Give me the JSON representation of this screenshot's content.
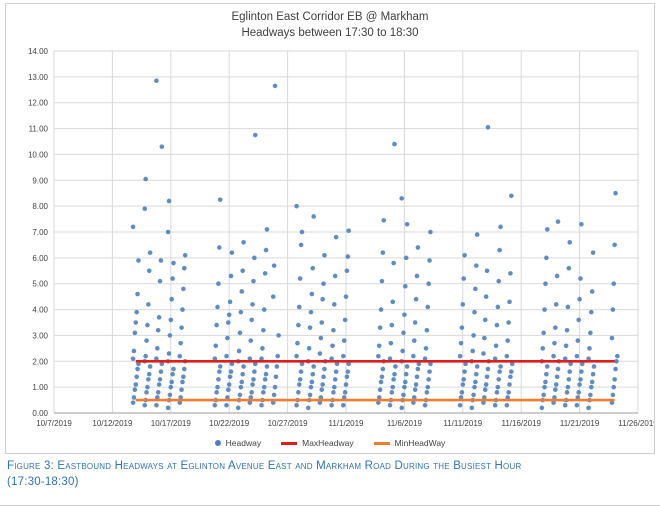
{
  "title": {
    "line1": "Eglinton East Corridor EB @ Markham",
    "line2": "Headways between 17:30 to 18:30"
  },
  "caption": {
    "line1": "Figure 3: Eastbound Headways at Eglinton Avenue East and Markham Road During the Busiest Hour",
    "line2": "(17:30-18:30)"
  },
  "colors": {
    "point": "#4e81bd",
    "max_line": "#e21c1c",
    "min_line": "#ed7d31",
    "grid": "#d9d9d9",
    "axis_line": "#9b9b9b",
    "axis_text": "#444444",
    "caption": "#2e74b5",
    "title_text": "#3f3f3f",
    "border": "#cfcfcf"
  },
  "chart_data": {
    "type": "scatter",
    "title": "Eglinton East Corridor EB @ Markham",
    "subtitle": "Headways between 17:30 to 18:30",
    "xlabel": "",
    "ylabel": "",
    "legend": [
      "Headway",
      "MaxHeadway",
      "MinHeadWay"
    ],
    "legend_position": "bottom",
    "grid": true,
    "y_axis": {
      "min": 0,
      "max": 14,
      "step": 1,
      "tick_format": "0.00"
    },
    "x_axis": {
      "start": "10/7/2019",
      "end": "11/26/2019",
      "tick_labels": [
        "10/7/2019",
        "10/12/2019",
        "10/17/2019",
        "10/22/2019",
        "10/27/2019",
        "11/1/2019",
        "11/6/2019",
        "11/11/2019",
        "11/16/2019",
        "11/21/2019",
        "11/26/2019"
      ]
    },
    "max_headway": 2.0,
    "min_headway": 0.5,
    "series_name": "Headway",
    "points_by_date": [
      {
        "date": "10/14/2019",
        "values": [
          0.4,
          0.6,
          0.9,
          1.1,
          1.4,
          1.7,
          1.9,
          2.1,
          2.4,
          3.1,
          3.5,
          3.9,
          4.6,
          5.9,
          7.2
        ]
      },
      {
        "date": "10/15/2019",
        "values": [
          0.3,
          0.5,
          0.8,
          1.0,
          1.3,
          1.5,
          1.8,
          2.0,
          2.2,
          2.8,
          3.4,
          4.2,
          5.5,
          6.2,
          7.9,
          9.05
        ]
      },
      {
        "date": "10/16/2019",
        "values": [
          0.3,
          0.6,
          0.8,
          1.1,
          1.3,
          1.6,
          1.9,
          2.1,
          2.5,
          3.2,
          3.7,
          5.1,
          5.9,
          10.3,
          12.85
        ]
      },
      {
        "date": "10/17/2019",
        "values": [
          0.2,
          0.5,
          0.7,
          1.0,
          1.2,
          1.5,
          1.7,
          2.0,
          2.3,
          3.0,
          3.6,
          4.4,
          5.2,
          5.8,
          7.0,
          8.2
        ]
      },
      {
        "date": "10/18/2019",
        "values": [
          0.4,
          0.6,
          0.9,
          1.2,
          1.4,
          1.7,
          2.0,
          2.2,
          2.7,
          3.3,
          4.0,
          4.8,
          5.6,
          6.1
        ]
      },
      {
        "date": "10/21/2019",
        "values": [
          0.3,
          0.5,
          0.8,
          1.0,
          1.3,
          1.6,
          1.8,
          2.1,
          2.6,
          3.4,
          4.1,
          5.0,
          6.4,
          8.25
        ]
      },
      {
        "date": "10/22/2019",
        "values": [
          0.3,
          0.6,
          0.9,
          1.1,
          1.4,
          1.6,
          1.9,
          2.2,
          2.9,
          3.5,
          3.8,
          4.3,
          5.3,
          6.2
        ]
      },
      {
        "date": "10/23/2019",
        "values": [
          0.2,
          0.5,
          0.7,
          1.0,
          1.2,
          1.5,
          1.8,
          2.0,
          2.4,
          3.1,
          3.9,
          4.7,
          5.5,
          6.6
        ]
      },
      {
        "date": "10/24/2019",
        "values": [
          0.4,
          0.6,
          0.8,
          1.1,
          1.3,
          1.6,
          1.9,
          2.1,
          2.8,
          3.6,
          4.2,
          5.1,
          6.0,
          10.75
        ]
      },
      {
        "date": "10/25/2019",
        "values": [
          0.3,
          0.5,
          0.8,
          1.0,
          1.3,
          1.5,
          1.8,
          2.1,
          2.5,
          3.2,
          4.0,
          5.4,
          6.3,
          7.1
        ]
      },
      {
        "date": "10/26/2019",
        "values": [
          0.4,
          0.7,
          1.0,
          1.4,
          1.8,
          2.2,
          3.0,
          4.5,
          5.7,
          12.65
        ]
      },
      {
        "date": "10/28/2019",
        "values": [
          0.3,
          0.5,
          0.8,
          1.1,
          1.3,
          1.6,
          1.9,
          2.2,
          2.7,
          3.4,
          4.1,
          5.2,
          6.5,
          7.0,
          8.0
        ]
      },
      {
        "date": "10/29/2019",
        "values": [
          0.2,
          0.5,
          0.7,
          1.0,
          1.2,
          1.5,
          1.8,
          2.0,
          2.5,
          3.3,
          3.9,
          4.6,
          5.6,
          7.6
        ]
      },
      {
        "date": "10/30/2019",
        "values": [
          0.4,
          0.6,
          0.9,
          1.1,
          1.4,
          1.7,
          2.0,
          2.3,
          2.9,
          3.5,
          4.4,
          5.0,
          6.1
        ]
      },
      {
        "date": "10/31/2019",
        "values": [
          0.3,
          0.5,
          0.8,
          1.0,
          1.3,
          1.6,
          1.9,
          2.1,
          2.6,
          3.2,
          4.2,
          5.3,
          6.8
        ]
      },
      {
        "date": "11/1/2019",
        "values": [
          0.3,
          0.6,
          0.8,
          1.1,
          1.4,
          1.6,
          1.9,
          2.2,
          2.8,
          3.6,
          4.5,
          5.5,
          6.05,
          7.05
        ]
      },
      {
        "date": "11/4/2019",
        "values": [
          0.4,
          0.6,
          0.9,
          1.2,
          1.4,
          1.7,
          2.0,
          2.2,
          2.6,
          3.3,
          4.0,
          5.1,
          6.2,
          7.45
        ]
      },
      {
        "date": "11/5/2019",
        "values": [
          0.3,
          0.5,
          0.8,
          1.0,
          1.3,
          1.5,
          1.8,
          2.1,
          2.7,
          3.4,
          4.3,
          5.8,
          10.4
        ]
      },
      {
        "date": "11/6/2019",
        "values": [
          0.2,
          0.5,
          0.7,
          1.0,
          1.2,
          1.5,
          1.8,
          2.0,
          2.4,
          3.1,
          3.8,
          4.9,
          6.0,
          7.3,
          8.3
        ]
      },
      {
        "date": "11/7/2019",
        "values": [
          0.4,
          0.6,
          0.9,
          1.1,
          1.4,
          1.7,
          1.9,
          2.2,
          2.8,
          3.5,
          4.4,
          5.3,
          6.4
        ]
      },
      {
        "date": "11/8/2019",
        "values": [
          0.3,
          0.5,
          0.8,
          1.0,
          1.3,
          1.6,
          1.9,
          2.1,
          2.5,
          3.2,
          4.1,
          5.0,
          5.9,
          7.0
        ]
      },
      {
        "date": "11/11/2019",
        "values": [
          0.3,
          0.6,
          0.8,
          1.1,
          1.3,
          1.6,
          1.9,
          2.2,
          2.7,
          3.3,
          4.2,
          5.2,
          6.1
        ]
      },
      {
        "date": "11/12/2019",
        "values": [
          0.2,
          0.5,
          0.7,
          1.0,
          1.2,
          1.5,
          1.8,
          2.0,
          2.4,
          3.0,
          3.9,
          4.8,
          5.7,
          6.9
        ]
      },
      {
        "date": "11/13/2019",
        "values": [
          0.4,
          0.6,
          0.9,
          1.1,
          1.4,
          1.7,
          2.0,
          2.3,
          2.9,
          3.6,
          4.5,
          5.5,
          11.05
        ]
      },
      {
        "date": "11/14/2019",
        "values": [
          0.3,
          0.5,
          0.8,
          1.0,
          1.3,
          1.6,
          1.8,
          2.1,
          2.6,
          3.4,
          4.1,
          5.1,
          6.3,
          7.2
        ]
      },
      {
        "date": "11/15/2019",
        "values": [
          0.3,
          0.6,
          0.8,
          1.1,
          1.4,
          1.6,
          1.9,
          2.2,
          2.8,
          3.5,
          4.3,
          5.4,
          8.4
        ]
      },
      {
        "date": "11/18/2019",
        "values": [
          0.2,
          0.5,
          0.7,
          1.0,
          1.2,
          1.5,
          1.8,
          2.0,
          2.5,
          3.1,
          4.0,
          5.0,
          6.0,
          7.1
        ]
      },
      {
        "date": "11/19/2019",
        "values": [
          0.4,
          0.6,
          0.9,
          1.1,
          1.4,
          1.7,
          2.0,
          2.2,
          2.7,
          3.3,
          4.2,
          5.3,
          7.4
        ]
      },
      {
        "date": "11/20/2019",
        "values": [
          0.3,
          0.5,
          0.8,
          1.0,
          1.3,
          1.6,
          1.9,
          2.1,
          2.6,
          3.2,
          4.1,
          5.6,
          6.6
        ]
      },
      {
        "date": "11/21/2019",
        "values": [
          0.3,
          0.6,
          0.8,
          1.1,
          1.3,
          1.6,
          1.9,
          2.2,
          2.8,
          3.6,
          4.4,
          5.2,
          7.3
        ]
      },
      {
        "date": "11/22/2019",
        "values": [
          0.2,
          0.5,
          0.7,
          1.0,
          1.2,
          1.5,
          1.8,
          2.1,
          2.5,
          3.1,
          3.9,
          4.7,
          6.2
        ]
      },
      {
        "date": "11/24/2019",
        "values": [
          0.4,
          0.7,
          1.0,
          1.3,
          1.7,
          2.0,
          2.2,
          2.9,
          4.0,
          5.0,
          6.5,
          8.5
        ]
      }
    ]
  }
}
